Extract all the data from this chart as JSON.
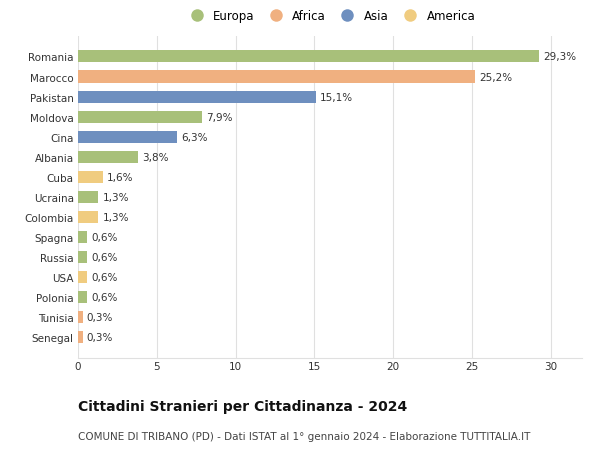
{
  "countries": [
    "Romania",
    "Marocco",
    "Pakistan",
    "Moldova",
    "Cina",
    "Albania",
    "Cuba",
    "Ucraina",
    "Colombia",
    "Spagna",
    "Russia",
    "USA",
    "Polonia",
    "Tunisia",
    "Senegal"
  ],
  "values": [
    29.3,
    25.2,
    15.1,
    7.9,
    6.3,
    3.8,
    1.6,
    1.3,
    1.3,
    0.6,
    0.6,
    0.6,
    0.6,
    0.3,
    0.3
  ],
  "labels": [
    "29,3%",
    "25,2%",
    "15,1%",
    "7,9%",
    "6,3%",
    "3,8%",
    "1,6%",
    "1,3%",
    "1,3%",
    "0,6%",
    "0,6%",
    "0,6%",
    "0,6%",
    "0,3%",
    "0,3%"
  ],
  "continents": [
    "Europa",
    "Africa",
    "Asia",
    "Europa",
    "Asia",
    "Europa",
    "America",
    "Europa",
    "America",
    "Europa",
    "Europa",
    "America",
    "Europa",
    "Africa",
    "Africa"
  ],
  "continent_colors": {
    "Europa": "#a8c07a",
    "Africa": "#f0b080",
    "Asia": "#6e8fbf",
    "America": "#f0cc80"
  },
  "legend_order": [
    "Europa",
    "Africa",
    "Asia",
    "America"
  ],
  "title": "Cittadini Stranieri per Cittadinanza - 2024",
  "subtitle": "COMUNE DI TRIBANO (PD) - Dati ISTAT al 1° gennaio 2024 - Elaborazione TUTTITALIA.IT",
  "xlim": [
    0,
    32
  ],
  "xticks": [
    0,
    5,
    10,
    15,
    20,
    25,
    30
  ],
  "background_color": "#ffffff",
  "grid_color": "#e0e0e0",
  "bar_height": 0.6,
  "title_fontsize": 10,
  "subtitle_fontsize": 7.5,
  "label_fontsize": 7.5,
  "tick_fontsize": 7.5,
  "legend_fontsize": 8.5
}
